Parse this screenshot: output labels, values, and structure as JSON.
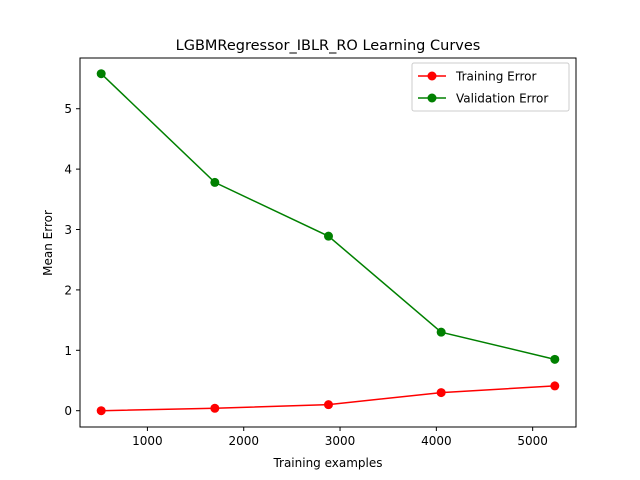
{
  "chart_data": {
    "type": "line",
    "title": "LGBMRegressor_IBLR_RO Learning Curves",
    "xlabel": "Training examples",
    "ylabel": "Mean Error",
    "xlim": [
      300,
      5450
    ],
    "ylim": [
      -0.27,
      5.84
    ],
    "x_ticks": [
      1000,
      2000,
      3000,
      4000,
      5000
    ],
    "y_ticks": [
      0,
      1,
      2,
      3,
      4,
      5
    ],
    "grid": false,
    "legend_position": "upper right",
    "x": [
      520,
      1700,
      2880,
      4050,
      5230
    ],
    "series": [
      {
        "name": "Training Error",
        "color": "#ff0000",
        "values": [
          0.0,
          0.04,
          0.1,
          0.3,
          0.41
        ]
      },
      {
        "name": "Validation Error",
        "color": "#008000",
        "values": [
          5.58,
          3.78,
          2.89,
          1.3,
          0.85
        ]
      }
    ]
  }
}
